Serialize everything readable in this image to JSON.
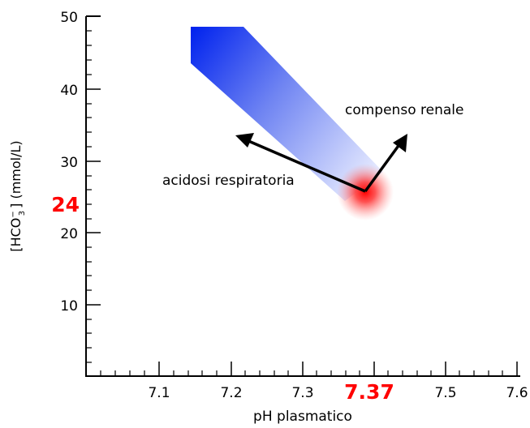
{
  "axes": {
    "xlabel": "pH plasmatico",
    "ylabel_prefix": "[HCO",
    "ylabel_sup": "−",
    "ylabel_sub": "3",
    "ylabel_suffix": "] (mmol/L)",
    "xlim": [
      7.0,
      7.6
    ],
    "ylim": [
      0,
      50
    ],
    "x_ticks": [
      "7.1",
      "7.2",
      "7.3",
      "7.5",
      "7.6"
    ],
    "y_ticks": [
      "10",
      "20",
      "30",
      "40",
      "50"
    ]
  },
  "highlight": {
    "ph_label": "7.37",
    "hco3_label": "24",
    "color": "#ff0000"
  },
  "annotations": {
    "respiratory_acidosis": "acidosi respiratoria",
    "renal_compensation": "compenso renale"
  },
  "colors": {
    "band_start": "#0022ee",
    "band_end": "#dde4ff",
    "axis": "#000000",
    "arrow": "#000000"
  }
}
